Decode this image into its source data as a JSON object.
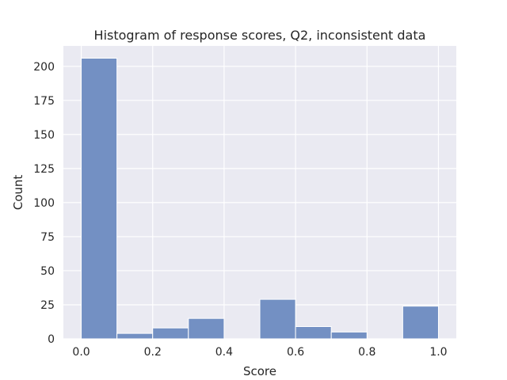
{
  "chart_data": {
    "type": "bar",
    "title": "Histogram of response scores, Q2, inconsistent data",
    "xlabel": "Score",
    "ylabel": "Count",
    "xlim": [
      -0.05,
      1.05
    ],
    "ylim": [
      0,
      215
    ],
    "xticks": [
      "0.0",
      "0.2",
      "0.4",
      "0.6",
      "0.8",
      "1.0"
    ],
    "yticks": [
      "0",
      "25",
      "50",
      "75",
      "100",
      "125",
      "150",
      "175",
      "200"
    ],
    "grid": true,
    "bin_edges": [
      0.0,
      0.1,
      0.2,
      0.3,
      0.4,
      0.5,
      0.6,
      0.7,
      0.8,
      0.9,
      1.0
    ],
    "values": [
      206,
      4,
      8,
      15,
      0,
      29,
      9,
      5,
      0,
      24
    ],
    "colors": {
      "bar_fill": "#7390c3",
      "bar_edge": "#ffffff",
      "plot_background": "#eaeaf2",
      "grid": "#ffffff"
    }
  }
}
